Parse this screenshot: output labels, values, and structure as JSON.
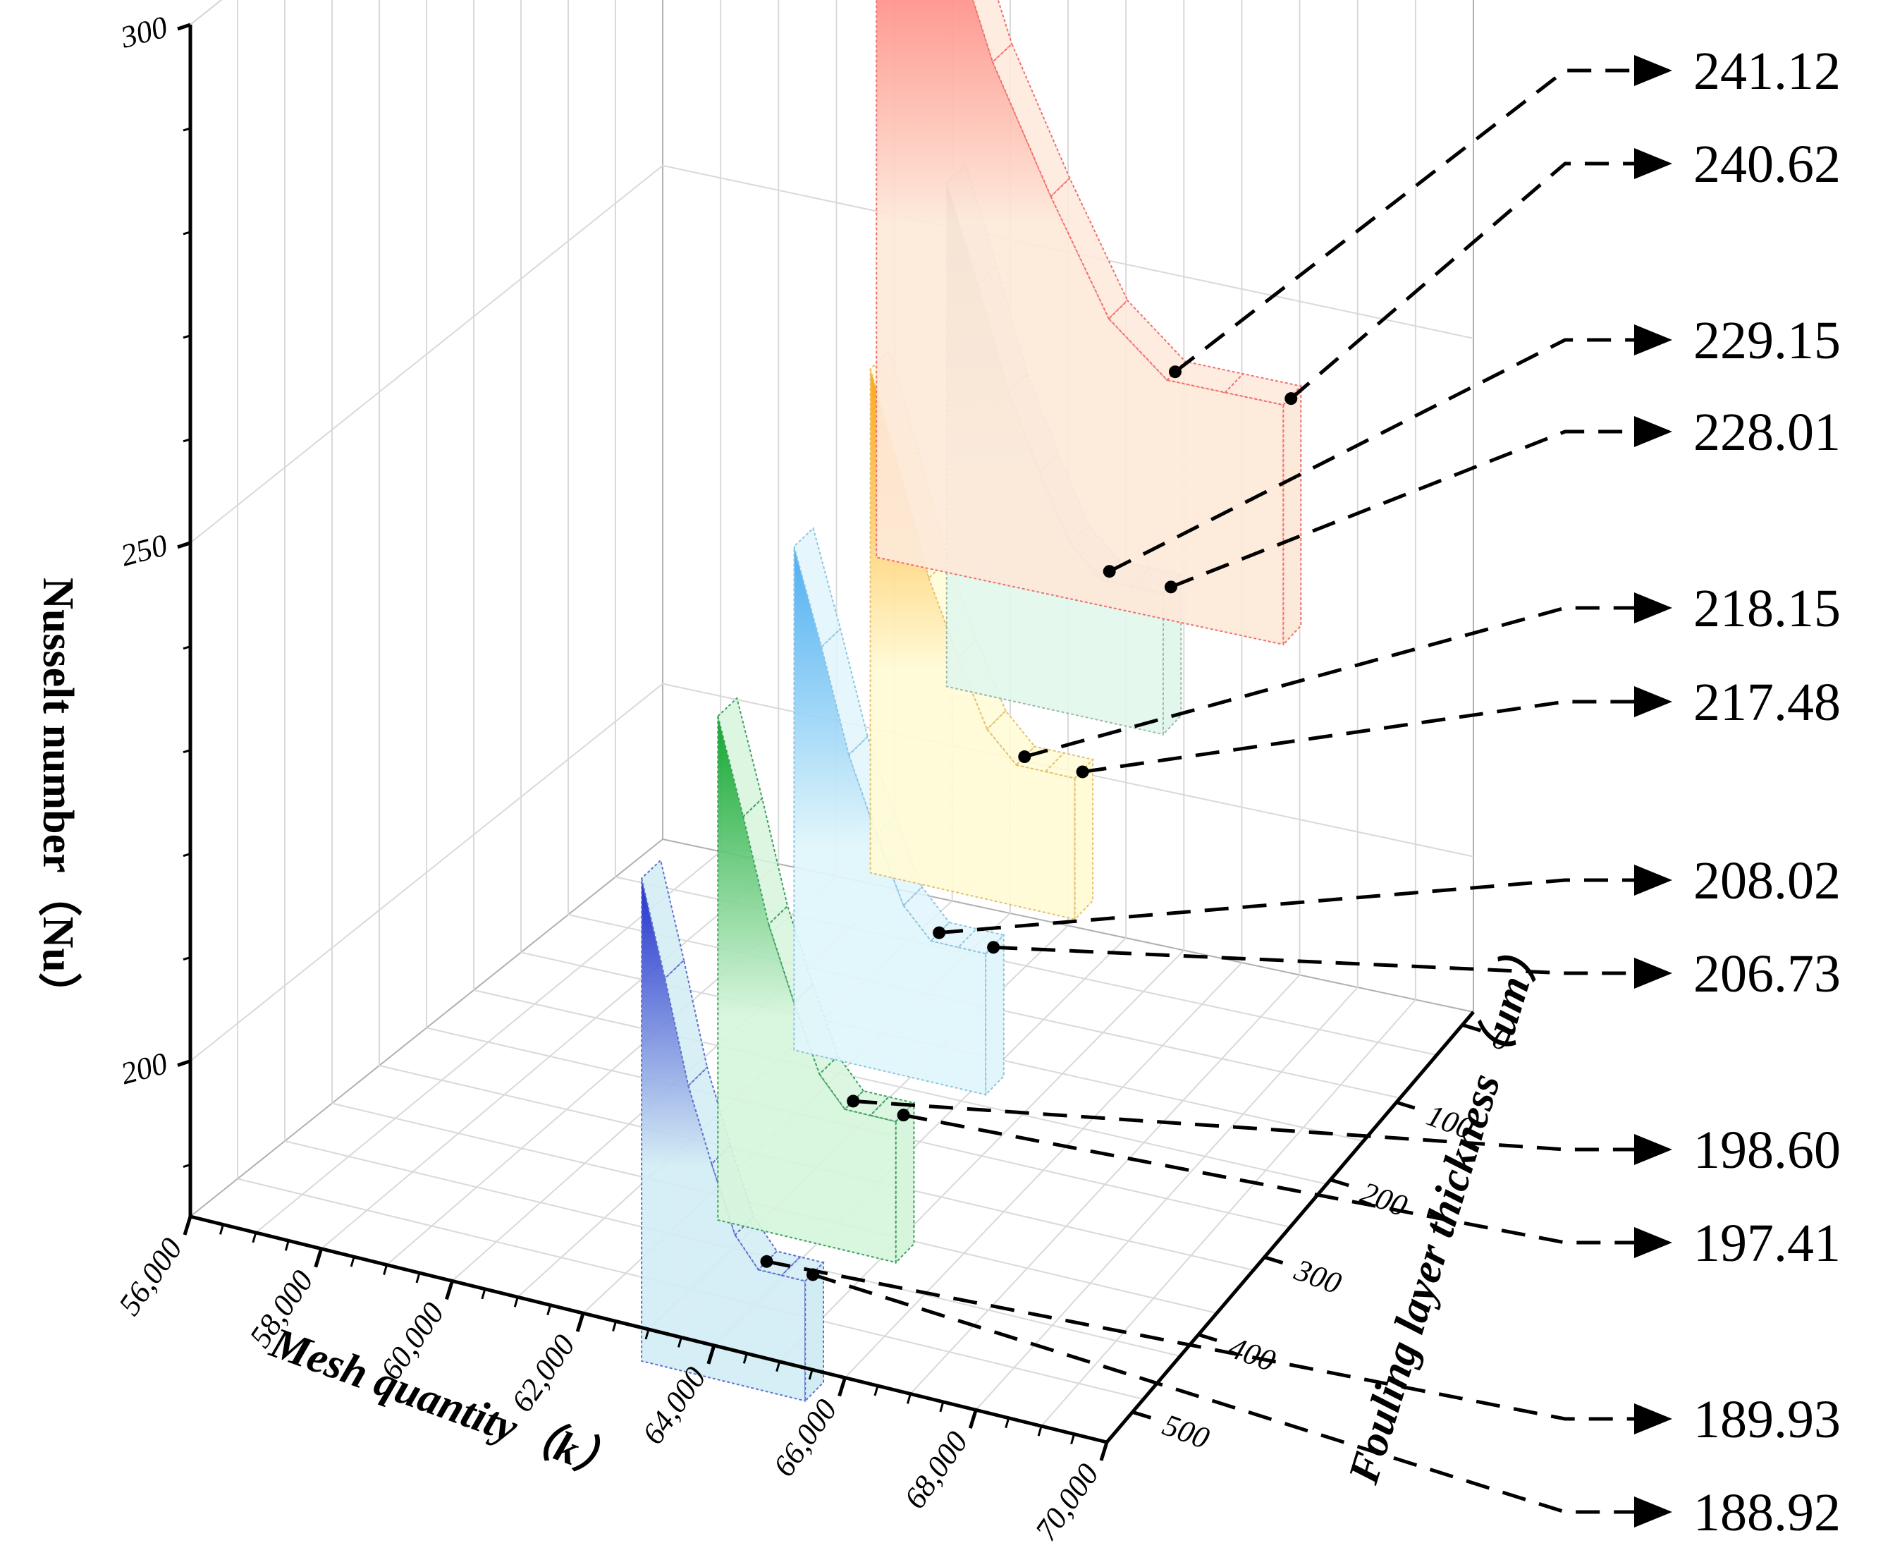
{
  "chart_data": {
    "type": "3d-bar",
    "x_axis": {
      "label": "Mesh quantity（k）",
      "ticks": [
        "56,000",
        "58,000",
        "60,000",
        "62,000",
        "64,000",
        "66,000",
        "68,000",
        "70,000"
      ],
      "range": [
        56000,
        70000
      ]
    },
    "y_axis": {
      "label": "Fouling layer thickness（um）",
      "ticks": [
        "0",
        "100",
        "200",
        "300",
        "400",
        "500"
      ],
      "range": [
        0,
        500
      ]
    },
    "z_axis": {
      "label": "Nusselt number（Nu）",
      "ticks": [
        "200",
        "250",
        "300"
      ],
      "range": [
        185,
        300
      ]
    },
    "series": [
      {
        "thickness": 0,
        "color": "#ff2020",
        "fill": "#fde9d9",
        "stroke": "#f07070",
        "end_values": [
          241.12,
          240.62
        ]
      },
      {
        "thickness": 100,
        "color": "#8c8c8c",
        "fill": "#e2f7ec",
        "stroke": "#9fb8a8",
        "end_values": [
          229.15,
          228.01
        ]
      },
      {
        "thickness": 200,
        "color": "#ffa000",
        "fill": "#fffbd6",
        "stroke": "#e5c070",
        "end_values": [
          218.15,
          217.48
        ]
      },
      {
        "thickness": 300,
        "color": "#40a8f0",
        "fill": "#e0f6fb",
        "stroke": "#90c4e0",
        "end_values": [
          208.02,
          206.73
        ]
      },
      {
        "thickness": 400,
        "color": "#00a020",
        "fill": "#d6f5dc",
        "stroke": "#40a060",
        "end_values": [
          198.6,
          197.41
        ]
      },
      {
        "thickness": 500,
        "color": "#1020c8",
        "fill": "#d2ecf4",
        "stroke": "#6070d0",
        "end_values": [
          189.93,
          188.92
        ]
      }
    ],
    "value_labels": [
      "241.12",
      "240.62",
      "229.15",
      "228.01",
      "218.15",
      "217.48",
      "208.02",
      "206.73",
      "198.60",
      "197.41",
      "189.93",
      "188.92"
    ],
    "grid": true,
    "legend": "none"
  }
}
